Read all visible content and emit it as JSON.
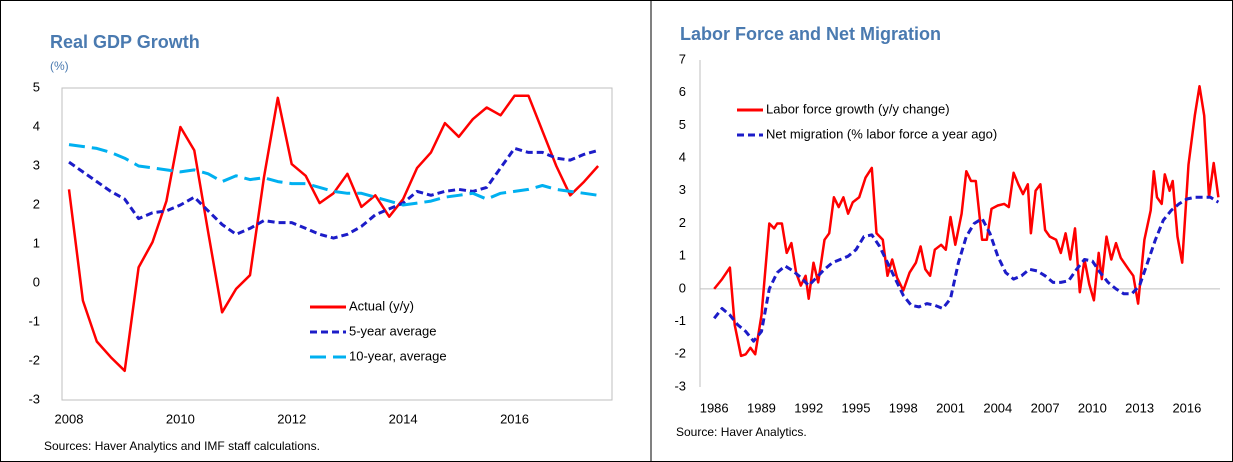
{
  "chart_data": [
    {
      "type": "line",
      "title": "Real GDP Growth",
      "subtitle": "(%)",
      "x": [
        2008,
        2008.25,
        2008.5,
        2008.75,
        2009,
        2009.25,
        2009.5,
        2009.75,
        2010,
        2010.25,
        2010.5,
        2010.75,
        2011,
        2011.25,
        2011.5,
        2011.75,
        2012,
        2012.25,
        2012.5,
        2012.75,
        2013,
        2013.25,
        2013.5,
        2013.75,
        2014,
        2014.25,
        2014.5,
        2014.75,
        2015,
        2015.25,
        2015.5,
        2015.75,
        2016,
        2016.25,
        2016.5,
        2016.75,
        2017,
        2017.25,
        2017.5
      ],
      "series": [
        {
          "name": "Actual (y/y)",
          "color": "#ff0000",
          "dash": "solid",
          "values": [
            2.4,
            -0.45,
            -1.5,
            -1.9,
            -2.25,
            0.4,
            1.05,
            2.1,
            4.0,
            3.4,
            1.3,
            -0.75,
            -0.15,
            0.2,
            2.7,
            4.75,
            3.05,
            2.75,
            2.05,
            2.3,
            2.8,
            1.95,
            2.25,
            1.7,
            2.15,
            2.95,
            3.35,
            4.1,
            3.75,
            4.2,
            4.5,
            4.3,
            4.8,
            4.8,
            3.9,
            3.0,
            2.25,
            2.6,
            3.0
          ]
        },
        {
          "name": "5-year average",
          "color": "#1c1cc8",
          "dash": "short",
          "values": [
            3.1,
            2.85,
            2.6,
            2.35,
            2.15,
            1.65,
            1.8,
            1.85,
            2.0,
            2.2,
            1.85,
            1.5,
            1.25,
            1.4,
            1.6,
            1.55,
            1.55,
            1.4,
            1.25,
            1.15,
            1.25,
            1.45,
            1.75,
            1.9,
            2.05,
            2.35,
            2.25,
            2.35,
            2.4,
            2.35,
            2.45,
            2.95,
            3.45,
            3.35,
            3.35,
            3.2,
            3.15,
            3.3,
            3.4
          ]
        },
        {
          "name": "10-year, average",
          "color": "#00b0f0",
          "dash": "long",
          "values": [
            3.55,
            3.5,
            3.45,
            3.35,
            3.2,
            3.0,
            2.95,
            2.9,
            2.85,
            2.9,
            2.8,
            2.6,
            2.75,
            2.65,
            2.7,
            2.6,
            2.55,
            2.55,
            2.45,
            2.35,
            2.3,
            2.3,
            2.2,
            2.1,
            2.0,
            2.05,
            2.1,
            2.2,
            2.25,
            2.3,
            2.15,
            2.3,
            2.35,
            2.4,
            2.5,
            2.4,
            2.35,
            2.3,
            2.25
          ]
        }
      ],
      "xlim": [
        2007.875,
        2017.75
      ],
      "xticks": [
        2008,
        2010,
        2012,
        2014,
        2016
      ],
      "ylim": [
        -3,
        5
      ],
      "yticks": [
        -3,
        -2,
        -1,
        0,
        1,
        2,
        3,
        4,
        5
      ],
      "grid": false,
      "legend": "lower right",
      "note": "Sources: Haver Analytics and IMF staff calculations."
    },
    {
      "type": "line",
      "title": "Labor Force and Net Migration",
      "series": [
        {
          "name": "Labor force growth (y/y change)",
          "color": "#ff0000",
          "dash": "solid",
          "x": [
            1986,
            1986.5,
            1987,
            1987.3,
            1987.7,
            1988,
            1988.3,
            1988.6,
            1989,
            1989.5,
            1989.8,
            1990,
            1990.3,
            1990.6,
            1990.9,
            1991.2,
            1991.5,
            1991.8,
            1992,
            1992.3,
            1992.6,
            1993,
            1993.3,
            1993.6,
            1993.9,
            1994.2,
            1994.5,
            1994.8,
            1995.2,
            1995.6,
            1996,
            1996.3,
            1996.7,
            1997,
            1997.3,
            1997.6,
            1998,
            1998.4,
            1998.8,
            1999.1,
            1999.4,
            1999.7,
            2000,
            2000.4,
            2000.7,
            2001,
            2001.3,
            2001.7,
            2002,
            2002.3,
            2002.6,
            2003,
            2003.3,
            2003.6,
            2004,
            2004.4,
            2004.7,
            2005,
            2005.3,
            2005.6,
            2005.9,
            2006.1,
            2006.4,
            2006.7,
            2007,
            2007.3,
            2007.7,
            2008,
            2008.3,
            2008.6,
            2008.9,
            2009.2,
            2009.5,
            2009.8,
            2010.1,
            2010.4,
            2010.6,
            2010.9,
            2011.2,
            2011.5,
            2011.8,
            2012.3,
            2012.6,
            2012.9,
            2013.3,
            2013.7,
            2013.9,
            2014.1,
            2014.4,
            2014.6,
            2014.9,
            2015.1,
            2015.4,
            2015.7,
            2016.1,
            2016.5,
            2016.8,
            2017.1,
            2017.4,
            2017.7,
            2018
          ],
          "values": [
            0.0,
            0.3,
            0.65,
            -1.1,
            -2.05,
            -2.0,
            -1.8,
            -2.0,
            -0.8,
            2.0,
            1.85,
            2.0,
            2.0,
            1.1,
            1.4,
            0.5,
            0.1,
            0.4,
            -0.3,
            0.8,
            0.2,
            1.5,
            1.7,
            2.8,
            2.5,
            2.8,
            2.3,
            2.65,
            2.8,
            3.4,
            3.7,
            1.7,
            1.5,
            0.4,
            0.9,
            0.35,
            -0.05,
            0.5,
            0.8,
            1.3,
            0.6,
            0.4,
            1.2,
            1.35,
            1.2,
            2.2,
            1.35,
            2.3,
            3.6,
            3.3,
            3.3,
            1.5,
            1.5,
            2.45,
            2.55,
            2.6,
            2.5,
            3.55,
            3.2,
            2.9,
            3.2,
            1.7,
            3.0,
            3.2,
            1.8,
            1.6,
            1.5,
            1.1,
            1.7,
            0.9,
            1.85,
            -0.1,
            0.9,
            0.15,
            -0.35,
            1.1,
            0.3,
            1.6,
            0.9,
            1.4,
            0.95,
            0.6,
            0.4,
            -0.45,
            1.5,
            2.4,
            3.6,
            2.8,
            2.6,
            3.5,
            3.0,
            3.3,
            1.6,
            0.8,
            3.8,
            5.3,
            6.2,
            5.3,
            2.8,
            3.85,
            2.8
          ]
        },
        {
          "name": "Net migration (% labor force a year ago)",
          "color": "#1c1cc8",
          "dash": "short",
          "x": [
            1986,
            1986.5,
            1987,
            1987.5,
            1988,
            1988.5,
            1989,
            1989.5,
            1990,
            1990.5,
            1991,
            1991.5,
            1992,
            1992.5,
            1993,
            1993.5,
            1994,
            1994.5,
            1995,
            1995.5,
            1996,
            1996.5,
            1997,
            1997.5,
            1998,
            1998.5,
            1999,
            1999.5,
            2000,
            2000.5,
            2001,
            2001.5,
            2002,
            2002.5,
            2003,
            2003.5,
            2004,
            2004.5,
            2005,
            2005.5,
            2006,
            2006.5,
            2007,
            2007.5,
            2008,
            2008.5,
            2009,
            2009.5,
            2010,
            2010.5,
            2011,
            2011.5,
            2012,
            2012.5,
            2013,
            2013.5,
            2014,
            2014.5,
            2015,
            2015.5,
            2016,
            2016.5,
            2017,
            2017.5,
            2018
          ],
          "values": [
            -0.9,
            -0.6,
            -0.8,
            -1.1,
            -1.3,
            -1.6,
            -1.3,
            0.0,
            0.5,
            0.7,
            0.55,
            0.35,
            0.1,
            0.35,
            0.6,
            0.8,
            0.9,
            1.0,
            1.2,
            1.6,
            1.65,
            1.3,
            0.8,
            0.3,
            -0.2,
            -0.5,
            -0.55,
            -0.45,
            -0.5,
            -0.6,
            -0.3,
            0.8,
            1.6,
            2.0,
            2.15,
            1.7,
            1.0,
            0.5,
            0.3,
            0.4,
            0.6,
            0.55,
            0.4,
            0.2,
            0.2,
            0.25,
            0.6,
            0.9,
            0.85,
            0.5,
            0.2,
            0.0,
            -0.15,
            -0.15,
            0.1,
            0.8,
            1.5,
            2.1,
            2.4,
            2.6,
            2.75,
            2.8,
            2.8,
            2.8,
            2.65
          ]
        }
      ],
      "xlim": [
        1985.1,
        2018.1
      ],
      "xticks": [
        1986,
        1989,
        1992,
        1995,
        1998,
        2001,
        2004,
        2007,
        2010,
        2013,
        2016
      ],
      "ylim": [
        -3,
        7
      ],
      "yticks": [
        -3,
        -2,
        -1,
        0,
        1,
        2,
        3,
        4,
        5,
        6,
        7
      ],
      "grid": false,
      "legend": "upper left",
      "note": "Source: Haver Analytics."
    }
  ]
}
